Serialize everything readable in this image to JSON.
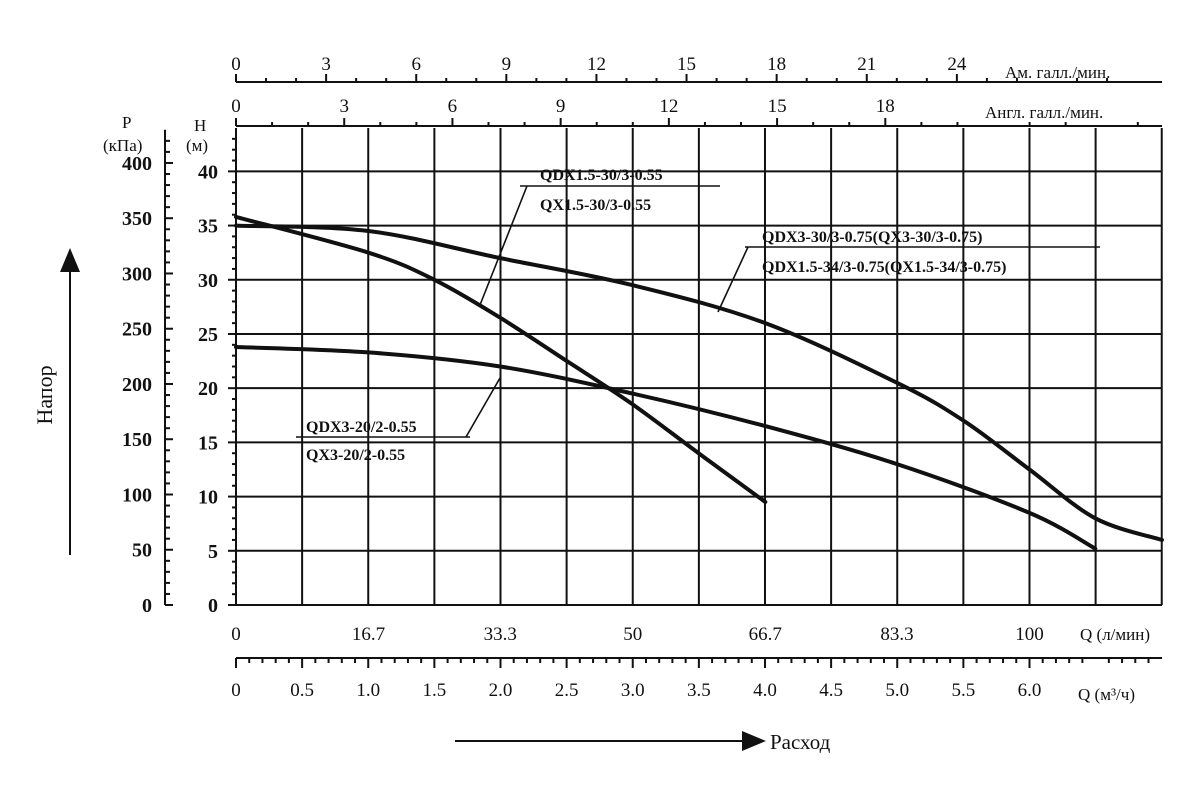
{
  "chart_data": {
    "type": "line",
    "title": "",
    "x": {
      "label_primary": "Q (л/мин)",
      "range_l_min": [
        0,
        116.7
      ],
      "ticks_l_min": [
        "0",
        "16.7",
        "33.3",
        "50",
        "66.7",
        "83.3",
        "100"
      ],
      "label_m3h": "Q (м³/ч)",
      "ticks_m3h": [
        "0",
        "0.5",
        "1.0",
        "1.5",
        "2.0",
        "2.5",
        "3.0",
        "3.5",
        "4.0",
        "4.5",
        "5.0",
        "5.5",
        "6.0"
      ],
      "label_us_gpm": "Ам. галл./мин.",
      "ticks_us_gpm": [
        "0",
        "3",
        "6",
        "9",
        "12",
        "15",
        "18",
        "21",
        "24"
      ],
      "label_uk_gpm": "Англ. галл./мин.",
      "ticks_uk_gpm": [
        "0",
        "3",
        "6",
        "9",
        "12",
        "15",
        "18"
      ]
    },
    "y": {
      "label_head": "H",
      "unit_head": "(м)",
      "range_m": [
        0,
        44
      ],
      "ticks_m": [
        "0",
        "5",
        "10",
        "15",
        "20",
        "25",
        "30",
        "35",
        "40"
      ],
      "label_pressure": "P",
      "unit_pressure": "(кПа)",
      "ticks_kpa": [
        "0",
        "50",
        "100",
        "150",
        "200",
        "250",
        "300",
        "350",
        "400"
      ]
    },
    "axis_titles": {
      "vertical": "Напор",
      "horizontal": "Расход"
    },
    "grid": true,
    "series": [
      {
        "name_line1": "QDX1.5-30/3-0.55",
        "name_line2": "QX1.5-30/3-0.55",
        "points_l_min": [
          [
            0,
            35.8
          ],
          [
            16.7,
            32.5
          ],
          [
            25,
            30
          ],
          [
            33.3,
            26.5
          ],
          [
            41.7,
            22.5
          ],
          [
            50,
            18.5
          ],
          [
            58.3,
            14
          ],
          [
            66.7,
            9.5
          ]
        ]
      },
      {
        "name_line1": "QDX3-30/3-0.75(QX3-30/3-0.75)",
        "name_line2": "QDX1.5-34/3-0.75(QX1.5-34/3-0.75)",
        "points_l_min": [
          [
            0,
            35
          ],
          [
            16.7,
            34.5
          ],
          [
            33.3,
            32
          ],
          [
            50,
            29.5
          ],
          [
            66.7,
            26
          ],
          [
            83.3,
            20.5
          ],
          [
            91.7,
            17
          ],
          [
            100,
            12.5
          ],
          [
            108.3,
            8
          ],
          [
            116.7,
            6
          ]
        ]
      },
      {
        "name_line1": "QDX3-20/2-0.55",
        "name_line2": "QX3-20/2-0.55",
        "points_l_min": [
          [
            0,
            23.8
          ],
          [
            16.7,
            23.3
          ],
          [
            33.3,
            22
          ],
          [
            50,
            19.5
          ],
          [
            66.7,
            16.5
          ],
          [
            83.3,
            13
          ],
          [
            100,
            8.5
          ],
          [
            108.3,
            5.2
          ]
        ]
      }
    ]
  }
}
